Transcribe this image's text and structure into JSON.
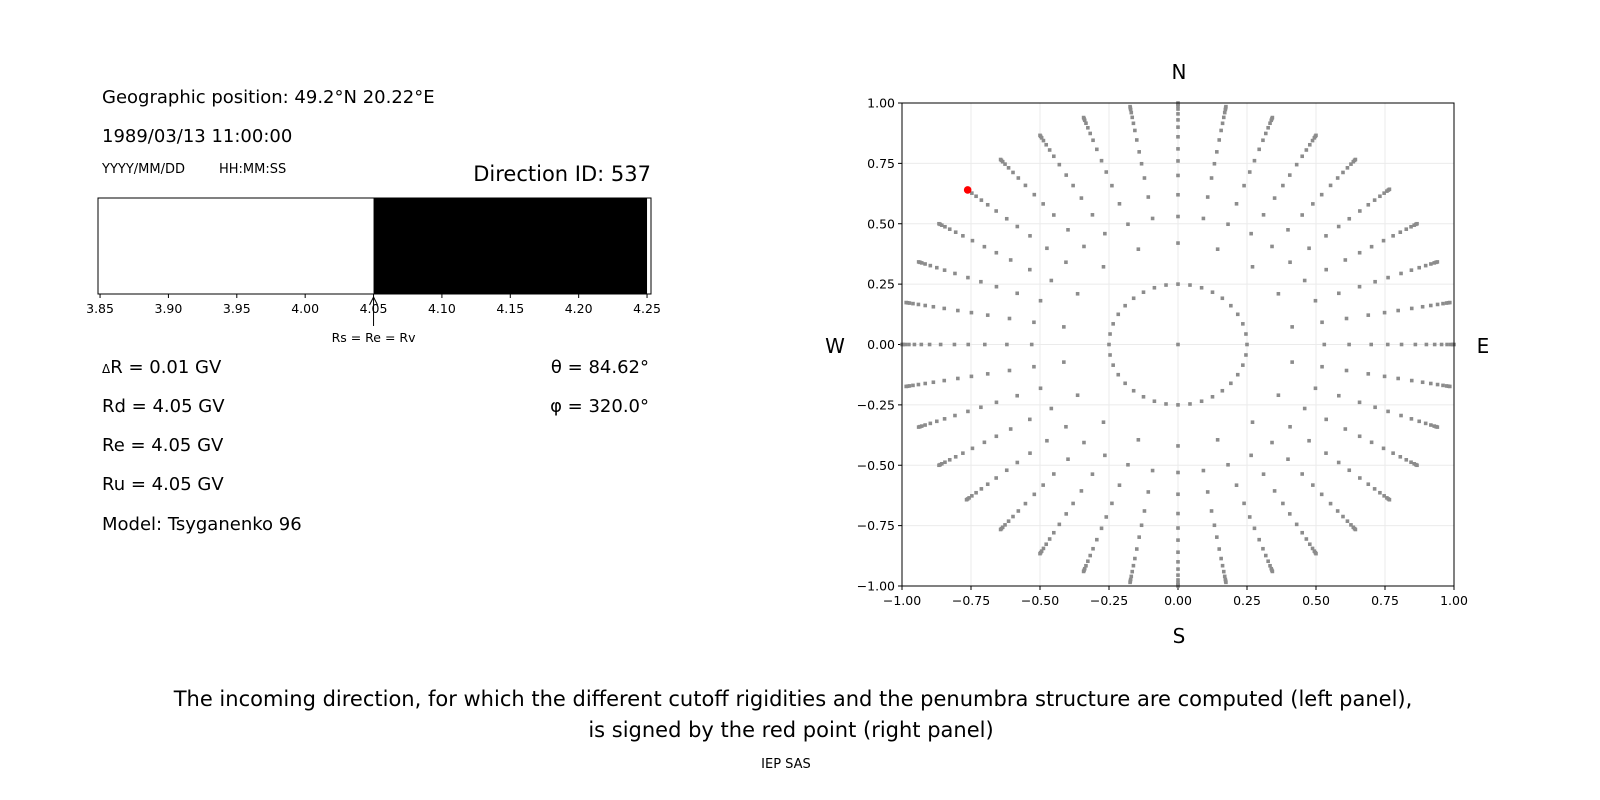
{
  "left_panel": {
    "geo_position": "Geographic position: 49.2°N 20.22°E",
    "datetime": "1989/03/13 11:00:00",
    "date_format": "YYYY/MM/DD",
    "time_format": "HH:MM:SS",
    "direction_id": "Direction ID: 537",
    "delta_r": "R = 0.01 GV",
    "delta_symbol": "Δ",
    "rd": "Rd = 4.05 GV",
    "re": "Re = 4.05 GV",
    "ru": "Ru = 4.05 GV",
    "model": "Model: Tsyganenko 96",
    "theta": "θ = 84.62°",
    "phi": "φ = 320.0°"
  },
  "caption": {
    "line1": "The incoming direction, for which the different cutoff rigidities and the penumbra structure are computed (left panel),",
    "line2": "is signed by the red point (right panel)",
    "credit": "IEP SAS"
  },
  "chart_data": [
    {
      "type": "bar",
      "description_kind": "penumbra band",
      "xlim": [
        3.85,
        4.25
      ],
      "x_ticks": [
        "3.85",
        "3.90",
        "3.95",
        "4.00",
        "4.05",
        "4.10",
        "4.15",
        "4.20",
        "4.25"
      ],
      "segments": [
        {
          "from": 3.85,
          "to": 4.05,
          "color": "#ffffff"
        },
        {
          "from": 4.05,
          "to": 4.25,
          "color": "#000000"
        }
      ],
      "annotation": {
        "x": 4.05,
        "text": "Rs = Re = Rv"
      }
    },
    {
      "type": "scatter",
      "xlim": [
        -1.0,
        1.0
      ],
      "ylim": [
        -1.0,
        1.0
      ],
      "grid": true,
      "x_ticks": [
        "−1.00",
        "−0.75",
        "−0.50",
        "−0.25",
        "0.00",
        "0.25",
        "0.50",
        "0.75",
        "1.00"
      ],
      "y_ticks": [
        "1.00",
        "0.75",
        "0.50",
        "0.25",
        "0.00",
        "−0.25",
        "−0.50",
        "−0.75",
        "−1.00"
      ],
      "directions": {
        "north": "N",
        "south": "S",
        "west": "W",
        "east": "E"
      },
      "grid_points": {
        "color": "#8c8c8c",
        "center": [
          0,
          0
        ],
        "rings": [
          {
            "r": 0.25,
            "count": 36
          },
          {
            "r": 0.42,
            "count": 18
          }
        ],
        "spoke_count": 36,
        "spoke_radii": [
          0.53,
          0.62,
          0.7,
          0.76,
          0.81,
          0.86,
          0.9,
          0.93,
          0.955,
          0.975,
          0.988,
          0.995,
          1.0
        ]
      },
      "selected_point": {
        "x": -0.762,
        "y": 0.64,
        "color": "#ff0000"
      }
    }
  ]
}
